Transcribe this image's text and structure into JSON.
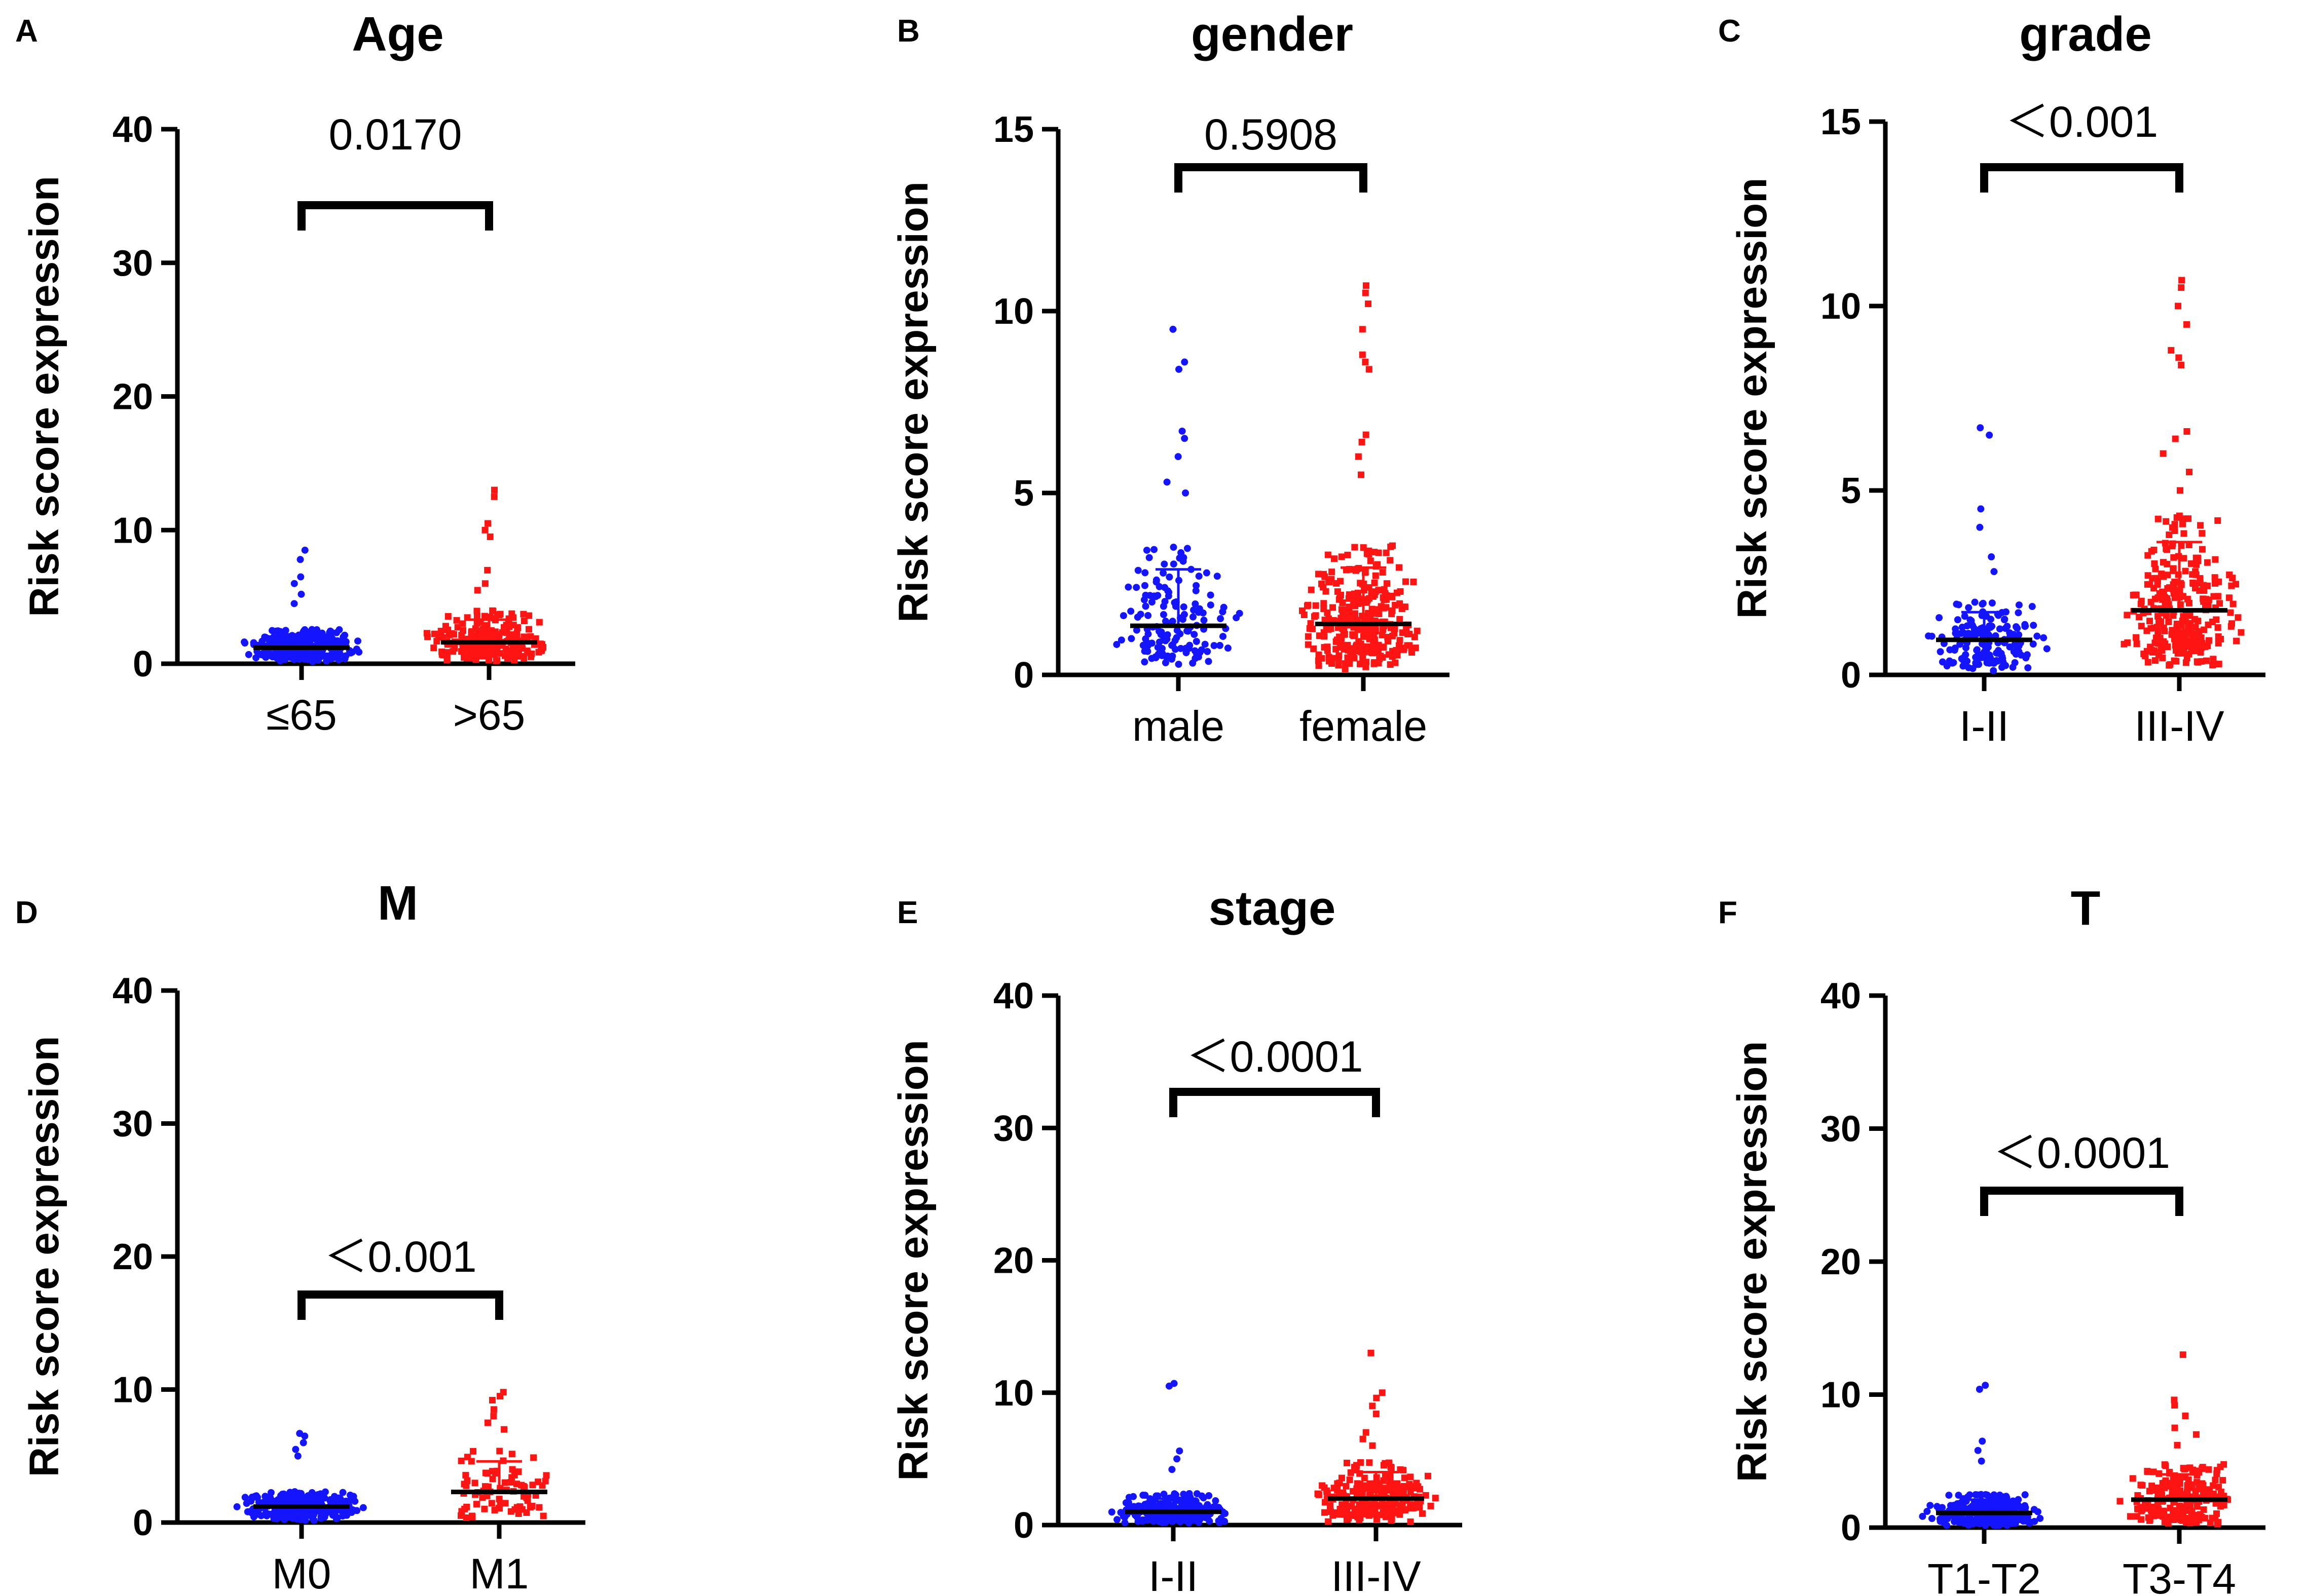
{
  "figure": {
    "colors": {
      "group1": "#1414ff",
      "group2": "#ff1414",
      "axis": "#000000"
    }
  },
  "chart_data": [
    {
      "type": "scatter",
      "panel": "A",
      "title": "Age",
      "ylabel": "Risk score expression",
      "ylim": [
        0,
        40
      ],
      "yticks": [
        0,
        10,
        20,
        30,
        40
      ],
      "categories": [
        "≤65",
        ">65"
      ],
      "series": [
        {
          "name": "≤65",
          "color": "#1414ff",
          "n": 240,
          "mean": 1.2,
          "sd_upper": 2.2,
          "max": 8.5,
          "outliers": [
            8.5,
            7.8,
            6.5,
            6.0,
            5.2,
            4.5
          ]
        },
        {
          "name": ">65",
          "color": "#ff1414",
          "n": 230,
          "mean": 1.6,
          "sd_upper": 3.3,
          "max": 13.0,
          "outliers": [
            13.0,
            12.5,
            10.5,
            10.0,
            9.5,
            7.0,
            6.0,
            5.5
          ]
        }
      ],
      "pvalue": "0.0170"
    },
    {
      "type": "scatter",
      "panel": "B",
      "title": "gender",
      "ylabel": "Risk score expression",
      "ylim": [
        0,
        15
      ],
      "yticks": [
        0,
        5,
        10,
        15
      ],
      "categories": [
        "male",
        "female"
      ],
      "series": [
        {
          "name": "male",
          "color": "#1414ff",
          "n": 150,
          "mean": 1.35,
          "sd_upper": 2.9,
          "max": 9.5,
          "outliers": [
            9.5,
            8.6,
            8.4,
            6.7,
            6.5,
            6.0,
            5.3,
            5.0
          ]
        },
        {
          "name": "female",
          "color": "#ff1414",
          "n": 310,
          "mean": 1.4,
          "sd_upper": 2.95,
          "max": 10.7,
          "outliers": [
            10.7,
            10.5,
            10.2,
            9.5,
            8.8,
            8.6,
            8.4,
            6.6,
            6.4,
            6.0,
            5.5
          ]
        }
      ],
      "pvalue": "0.5908"
    },
    {
      "type": "scatter",
      "panel": "C",
      "title": "grade",
      "ylabel": "Risk score expression",
      "ylim": [
        0,
        15
      ],
      "yticks": [
        0,
        5,
        10,
        15
      ],
      "categories": [
        "I-II",
        "III-IV"
      ],
      "series": [
        {
          "name": "I-II",
          "color": "#1414ff",
          "n": 170,
          "mean": 0.95,
          "sd_upper": 1.7,
          "max": 6.7,
          "outliers": [
            6.7,
            6.5,
            4.5,
            4.0,
            3.2,
            2.8
          ]
        },
        {
          "name": "III-IV",
          "color": "#ff1414",
          "n": 280,
          "mean": 1.75,
          "sd_upper": 3.6,
          "max": 10.7,
          "outliers": [
            10.7,
            10.5,
            10.0,
            9.5,
            8.8,
            8.6,
            8.4,
            6.6,
            6.4,
            6.0,
            5.5,
            5.0
          ]
        }
      ],
      "pvalue": "＜0.001"
    },
    {
      "type": "scatter",
      "panel": "D",
      "title": "M",
      "ylabel": "Risk score expression",
      "ylim": [
        0,
        40
      ],
      "yticks": [
        0,
        10,
        20,
        30,
        40
      ],
      "categories": [
        "M0",
        "M1"
      ],
      "series": [
        {
          "name": "M0",
          "color": "#1414ff",
          "n": 300,
          "mean": 1.2,
          "sd_upper": 2.0,
          "max": 6.7,
          "outliers": [
            6.7,
            6.5,
            6.0,
            5.5,
            5.0
          ]
        },
        {
          "name": "M1",
          "color": "#ff1414",
          "n": 80,
          "mean": 2.3,
          "sd_upper": 4.6,
          "max": 9.8,
          "outliers": [
            9.8,
            9.5,
            9.2,
            8.5,
            8.0,
            7.5,
            7.0
          ]
        }
      ],
      "pvalue": "＜0.001"
    },
    {
      "type": "scatter",
      "panel": "E",
      "title": "stage",
      "ylabel": "Risk score expression",
      "ylim": [
        0,
        40
      ],
      "yticks": [
        0,
        10,
        20,
        30,
        40
      ],
      "categories": [
        "I-II",
        "III-IV"
      ],
      "series": [
        {
          "name": "I-II",
          "color": "#1414ff",
          "n": 240,
          "mean": 1.0,
          "sd_upper": 2.0,
          "max": 10.7,
          "outliers": [
            10.7,
            10.5,
            5.6,
            5.0,
            4.2
          ]
        },
        {
          "name": "III-IV",
          "color": "#ff1414",
          "n": 230,
          "mean": 2.0,
          "sd_upper": 4.0,
          "max": 13.0,
          "outliers": [
            13.0,
            10.0,
            9.6,
            9.0,
            8.4,
            7.0,
            6.5,
            6.0
          ]
        }
      ],
      "pvalue": "＜0.0001"
    },
    {
      "type": "scatter",
      "panel": "F",
      "title": "T",
      "ylabel": "Risk score expression",
      "ylim": [
        0,
        40
      ],
      "yticks": [
        0,
        10,
        20,
        30,
        40
      ],
      "categories": [
        "T1-T2",
        "T3-T4"
      ],
      "series": [
        {
          "name": "T1-T2",
          "color": "#1414ff",
          "n": 260,
          "mean": 1.1,
          "sd_upper": 2.1,
          "max": 10.7,
          "outliers": [
            10.7,
            10.4,
            6.5,
            5.8,
            5.0
          ]
        },
        {
          "name": "T3-T4",
          "color": "#ff1414",
          "n": 220,
          "mean": 2.1,
          "sd_upper": 4.0,
          "max": 13.0,
          "outliers": [
            13.0,
            9.6,
            9.2,
            8.4,
            7.5,
            7.0,
            6.2
          ]
        }
      ],
      "pvalue": "＜0.0001"
    }
  ]
}
